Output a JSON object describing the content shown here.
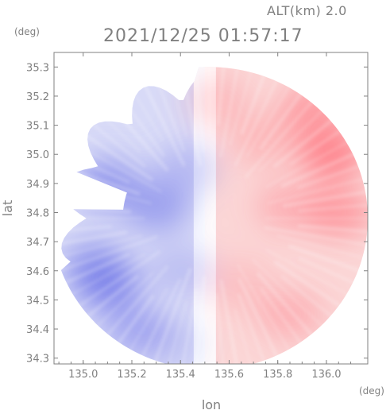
{
  "chart_data": {
    "type": "heatmap",
    "title": "2021/12/25 01:57:17",
    "altitude_label": "ALT(km) 2.0",
    "xlabel": "lon",
    "ylabel": "lat",
    "x_unit": "(deg)",
    "y_unit": "(deg)",
    "xlim": [
      134.88,
      136.17
    ],
    "ylim": [
      34.28,
      35.35
    ],
    "x_ticks": [
      {
        "value": 135.0,
        "label": "135.0"
      },
      {
        "value": 135.2,
        "label": "135.2"
      },
      {
        "value": 135.4,
        "label": "135.4"
      },
      {
        "value": 135.6,
        "label": "135.6"
      },
      {
        "value": 135.8,
        "label": "135.8"
      },
      {
        "value": 136.0,
        "label": "136.0"
      }
    ],
    "y_ticks": [
      {
        "value": 34.3,
        "label": "34.3"
      },
      {
        "value": 34.4,
        "label": "34.4"
      },
      {
        "value": 34.5,
        "label": "34.5"
      },
      {
        "value": 34.6,
        "label": "34.6"
      },
      {
        "value": 34.7,
        "label": "34.7"
      },
      {
        "value": 34.8,
        "label": "34.8"
      },
      {
        "value": 34.9,
        "label": "34.9"
      },
      {
        "value": 35.0,
        "label": "35.0"
      },
      {
        "value": 35.1,
        "label": "35.1"
      },
      {
        "value": 35.2,
        "label": "35.2"
      },
      {
        "value": 35.3,
        "label": "35.3"
      }
    ],
    "radar_coverage": {
      "center_lon": 135.52,
      "center_lat": 34.78,
      "radius_lon_deg": 0.65,
      "radius_lat_deg": 0.52
    },
    "colors": {
      "toward": "#6e74e8",
      "away": "#ff6f7a",
      "zero": "#ffffff",
      "axis": "#808080"
    },
    "field_blobs": [
      {
        "lon": 135.85,
        "lat": 34.82,
        "value": 0.35
      },
      {
        "lon": 136.05,
        "lat": 34.8,
        "value": 0.55
      },
      {
        "lon": 135.95,
        "lat": 35.15,
        "value": 0.55
      },
      {
        "lon": 136.02,
        "lat": 35.0,
        "value": 0.75
      },
      {
        "lon": 135.75,
        "lat": 35.05,
        "value": 0.3
      },
      {
        "lon": 135.65,
        "lat": 34.55,
        "value": 0.2
      },
      {
        "lon": 135.85,
        "lat": 34.45,
        "value": 0.35
      },
      {
        "lon": 135.55,
        "lat": 35.18,
        "value": 0.25
      },
      {
        "lon": 135.1,
        "lat": 34.55,
        "value": -0.7
      },
      {
        "lon": 135.05,
        "lat": 34.62,
        "value": -0.55
      },
      {
        "lon": 135.3,
        "lat": 34.82,
        "value": -0.55
      },
      {
        "lon": 135.22,
        "lat": 34.4,
        "value": -0.45
      },
      {
        "lon": 135.42,
        "lat": 34.95,
        "value": -0.3
      },
      {
        "lon": 135.35,
        "lat": 34.35,
        "value": -0.2
      },
      {
        "lon": 135.1,
        "lat": 34.9,
        "value": -0.6
      },
      {
        "lon": 135.4,
        "lat": 34.6,
        "value": -0.25
      }
    ]
  }
}
